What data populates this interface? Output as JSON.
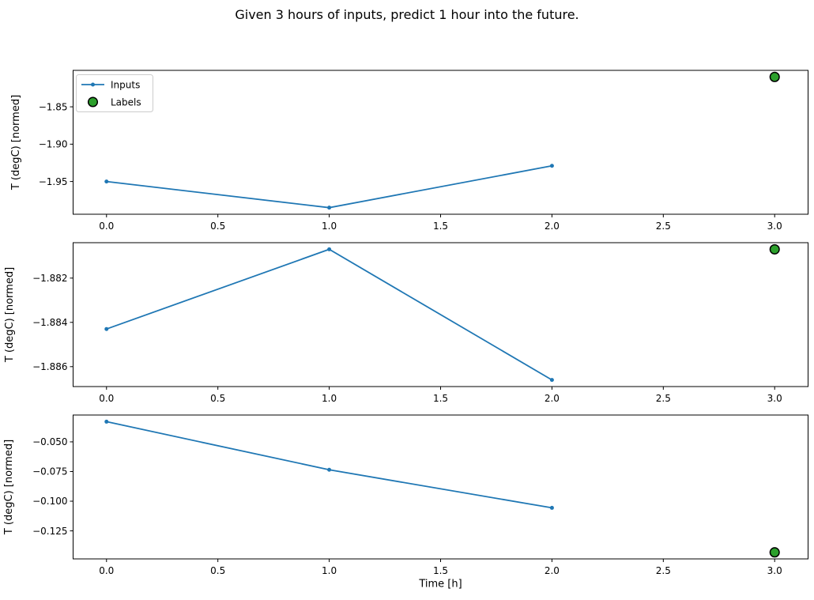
{
  "figure": {
    "title": "Given 3 hours of inputs, predict 1 hour into the future.",
    "xlabel": "Time [h]",
    "background": "#ffffff"
  },
  "colors": {
    "inputs_line": "#1f77b4",
    "labels_fill": "#2ca02c",
    "labels_edge": "#000000",
    "axes": "#000000",
    "legend_border": "#cccccc"
  },
  "legend": {
    "location": "upper left",
    "items": [
      {
        "label": "Inputs",
        "marker": "line-with-dot",
        "color": "#1f77b4"
      },
      {
        "label": "Labels",
        "marker": "edged-circle",
        "color": "#2ca02c"
      }
    ]
  },
  "chart_data": [
    {
      "type": "line",
      "ylabel": "T (degC) [normed]",
      "series": [
        {
          "name": "Inputs",
          "x": [
            0,
            1,
            2
          ],
          "y": [
            -1.95,
            -1.985,
            -1.929
          ]
        },
        {
          "name": "Labels",
          "x": [
            3
          ],
          "y": [
            -1.81
          ]
        }
      ],
      "xlim": [
        -0.15,
        3.15
      ],
      "ylim": [
        -1.9938,
        -1.8012
      ],
      "xticks": [
        0.0,
        0.5,
        1.0,
        1.5,
        2.0,
        2.5,
        3.0
      ],
      "xtick_labels": [
        "0.0",
        "0.5",
        "1.0",
        "1.5",
        "2.0",
        "2.5",
        "3.0"
      ],
      "yticks": [
        -1.85,
        -1.9,
        -1.95
      ],
      "ytick_labels": [
        "−1.85",
        "−1.90",
        "−1.95"
      ],
      "has_legend": true
    },
    {
      "type": "line",
      "ylabel": "T (degC) [normed]",
      "series": [
        {
          "name": "Inputs",
          "x": [
            0,
            1,
            2
          ],
          "y": [
            -1.8843,
            -1.8807,
            -1.8866
          ]
        },
        {
          "name": "Labels",
          "x": [
            3
          ],
          "y": [
            -1.8807
          ]
        }
      ],
      "xlim": [
        -0.15,
        3.15
      ],
      "ylim": [
        -1.8869,
        -1.8804
      ],
      "xticks": [
        0.0,
        0.5,
        1.0,
        1.5,
        2.0,
        2.5,
        3.0
      ],
      "xtick_labels": [
        "0.0",
        "0.5",
        "1.0",
        "1.5",
        "2.0",
        "2.5",
        "3.0"
      ],
      "yticks": [
        -1.882,
        -1.884,
        -1.886
      ],
      "ytick_labels": [
        "−1.882",
        "−1.884",
        "−1.886"
      ],
      "has_legend": false
    },
    {
      "type": "line",
      "ylabel": "T (degC) [normed]",
      "series": [
        {
          "name": "Inputs",
          "x": [
            0,
            1,
            2
          ],
          "y": [
            -0.033,
            -0.0735,
            -0.1056
          ]
        },
        {
          "name": "Labels",
          "x": [
            3
          ],
          "y": [
            -0.1431
          ]
        }
      ],
      "xlim": [
        -0.15,
        3.15
      ],
      "ylim": [
        -0.14861,
        -0.02739
      ],
      "xticks": [
        0.0,
        0.5,
        1.0,
        1.5,
        2.0,
        2.5,
        3.0
      ],
      "xtick_labels": [
        "0.0",
        "0.5",
        "1.0",
        "1.5",
        "2.0",
        "2.5",
        "3.0"
      ],
      "yticks": [
        -0.05,
        -0.075,
        -0.1,
        -0.125
      ],
      "ytick_labels": [
        "−0.050",
        "−0.075",
        "−0.100",
        "−0.125"
      ],
      "has_legend": false
    }
  ]
}
